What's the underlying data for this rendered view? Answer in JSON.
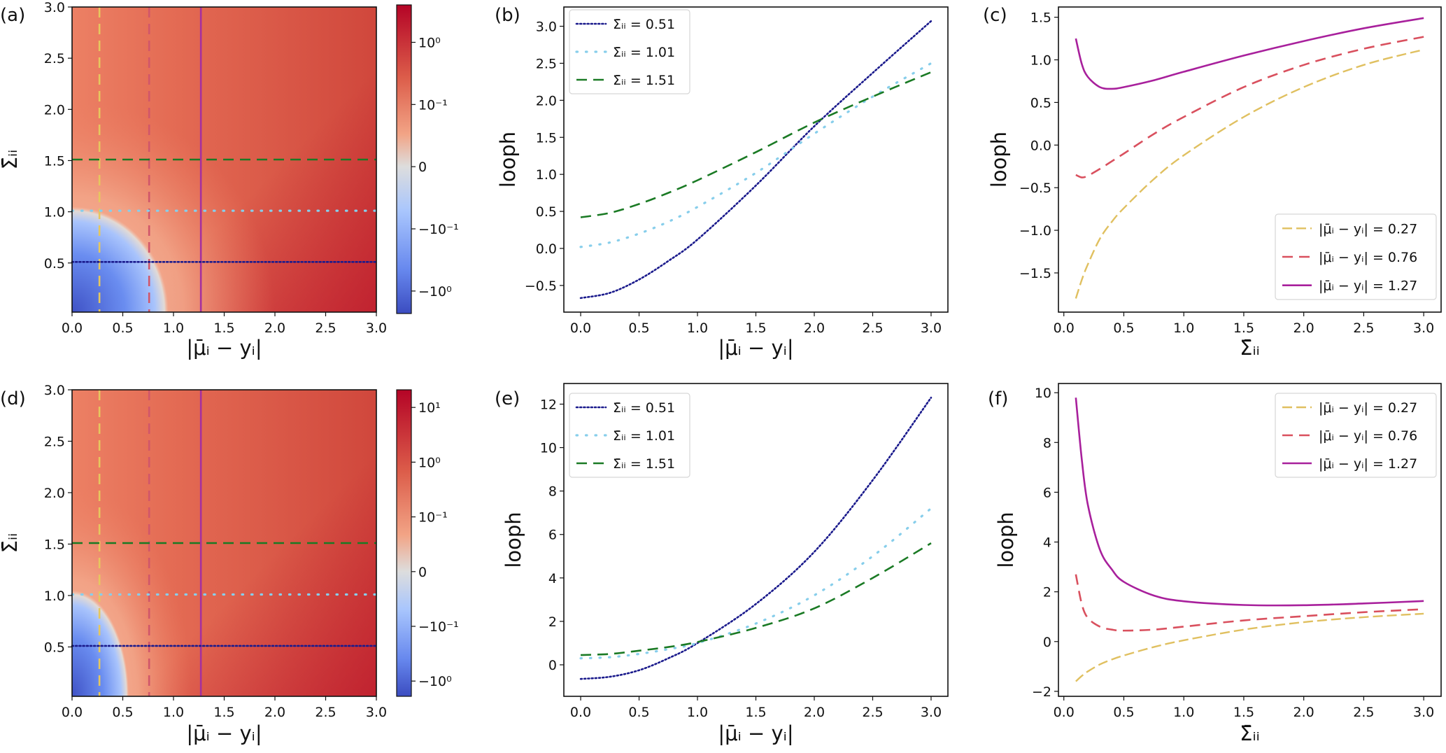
{
  "chart_data": [
    {
      "panel": "(a)",
      "type": "heatmap",
      "xlabel": "|μ̄ᵢ − yᵢ|",
      "ylabel": "Σ̄ᵢᵢ",
      "xlim": [
        0,
        3.0
      ],
      "ylim": [
        0.02,
        3.0
      ],
      "xticks": [
        0,
        0.5,
        1.0,
        1.5,
        2.0,
        2.5,
        3.0
      ],
      "xtick_labels": [
        "0.0",
        "0.5",
        "1.0",
        "1.5",
        "2.0",
        "2.5",
        "3.0"
      ],
      "yticks": [
        0.5,
        1.0,
        1.5,
        2.0,
        2.5,
        3.0
      ],
      "ytick_labels": [
        "0.5",
        "1.0",
        "1.5",
        "2.0",
        "2.5",
        "3.0"
      ],
      "colormap": "coolwarm",
      "negative_region": {
        "x_extent": 0.95,
        "y_extent": 1.05
      },
      "colorbar": {
        "scale": "symlog",
        "linthresh": 0.1,
        "vlim": [
          -2.3,
          4.0
        ],
        "ticks": [
          1,
          0.1,
          0,
          -0.1,
          -1
        ],
        "tick_labels": [
          "10⁰",
          "10⁻¹",
          "0",
          "−10⁻¹",
          "−10⁰"
        ]
      },
      "vlines": [
        {
          "value": 0.27,
          "color": "#e6c75e",
          "style": "dashed"
        },
        {
          "value": 0.76,
          "color": "#d0566a",
          "style": "dashed"
        },
        {
          "value": 1.27,
          "color": "#a5309f",
          "style": "solid"
        }
      ],
      "hlines": [
        {
          "value": 0.51,
          "color": "#1a1a8c",
          "style": "dotted"
        },
        {
          "value": 1.01,
          "color": "#87ceeb",
          "style": "sparse-dotted"
        },
        {
          "value": 1.51,
          "color": "#1a7a24",
          "style": "dashed"
        }
      ]
    },
    {
      "panel": "(b)",
      "type": "line",
      "xlabel": "|μ̄ᵢ − yᵢ|",
      "ylabel": "looph",
      "xlim": [
        -0.144,
        3.144
      ],
      "ylim": [
        -0.86,
        3.26
      ],
      "xticks": [
        0,
        0.5,
        1.0,
        1.5,
        2.0,
        2.5,
        3.0
      ],
      "xtick_labels": [
        "0.0",
        "0.5",
        "1.0",
        "1.5",
        "2.0",
        "2.5",
        "3.0"
      ],
      "yticks": [
        -0.5,
        0,
        0.5,
        1.0,
        1.5,
        2.0,
        2.5,
        3.0
      ],
      "ytick_labels": [
        "−0.5",
        "0.0",
        "0.5",
        "1.0",
        "1.5",
        "2.0",
        "2.5",
        "3.0"
      ],
      "legend_position": "upper left",
      "x": [
        0,
        0.25,
        0.5,
        0.75,
        1.0,
        1.5,
        2.0,
        2.5,
        3.0
      ],
      "series": [
        {
          "name": "Σ̄ᵢᵢ = 0.51",
          "color": "#1a1a8c",
          "style": "dotted",
          "values": [
            -0.67,
            -0.6,
            -0.42,
            -0.17,
            0.12,
            0.85,
            1.65,
            2.37,
            3.07
          ]
        },
        {
          "name": "Σ̄ᵢᵢ = 1.01",
          "color": "#87ceeb",
          "style": "sparse-dotted",
          "values": [
            0.02,
            0.08,
            0.2,
            0.36,
            0.56,
            1.02,
            1.55,
            2.05,
            2.5
          ]
        },
        {
          "name": "Σ̄ᵢᵢ = 1.51",
          "color": "#1a7a24",
          "style": "dashed",
          "values": [
            0.42,
            0.48,
            0.6,
            0.75,
            0.92,
            1.3,
            1.7,
            2.05,
            2.38
          ]
        }
      ]
    },
    {
      "panel": "(c)",
      "type": "line",
      "xlabel": "Σ̄ᵢᵢ",
      "ylabel": "looph",
      "xlim": [
        -0.045,
        3.145
      ],
      "ylim": [
        -1.96,
        1.62
      ],
      "xticks": [
        0,
        0.5,
        1.0,
        1.5,
        2.0,
        2.5,
        3.0
      ],
      "xtick_labels": [
        "0.0",
        "0.5",
        "1.0",
        "1.5",
        "2.0",
        "2.5",
        "3.0"
      ],
      "yticks": [
        -1.5,
        -1.0,
        -0.5,
        0,
        0.5,
        1.0,
        1.5
      ],
      "ytick_labels": [
        "−1.5",
        "−1.0",
        "−0.5",
        "0.0",
        "0.5",
        "1.0",
        "1.5"
      ],
      "legend_position": "lower right",
      "x": [
        0.1,
        0.15,
        0.2,
        0.3,
        0.4,
        0.5,
        0.75,
        1.0,
        1.5,
        2.0,
        2.5,
        3.0
      ],
      "series": [
        {
          "name": "|μ̄ᵢ − yᵢ| = 0.27",
          "color": "#e0c060",
          "style": "dashdot",
          "values": [
            -1.8,
            -1.58,
            -1.4,
            -1.1,
            -0.9,
            -0.74,
            -0.4,
            -0.12,
            0.33,
            0.68,
            0.94,
            1.12
          ]
        },
        {
          "name": "|μ̄ᵢ − yᵢ| = 0.76",
          "color": "#d9505e",
          "style": "dashed",
          "values": [
            -0.35,
            -0.38,
            -0.36,
            -0.28,
            -0.19,
            -0.1,
            0.13,
            0.33,
            0.68,
            0.94,
            1.13,
            1.27
          ]
        },
        {
          "name": "|μ̄ᵢ − yᵢ| = 1.27",
          "color": "#a8209c",
          "style": "solid",
          "values": [
            1.25,
            0.95,
            0.8,
            0.68,
            0.66,
            0.68,
            0.76,
            0.86,
            1.05,
            1.22,
            1.37,
            1.49
          ]
        }
      ]
    },
    {
      "panel": "(d)",
      "type": "heatmap",
      "xlabel": "|μ̄ᵢ − yᵢ|",
      "ylabel": "Σ̄ᵢᵢ",
      "xlim": [
        0,
        3.0
      ],
      "ylim": [
        0.02,
        3.0
      ],
      "xticks": [
        0,
        0.5,
        1.0,
        1.5,
        2.0,
        2.5,
        3.0
      ],
      "xtick_labels": [
        "0.0",
        "0.5",
        "1.0",
        "1.5",
        "2.0",
        "2.5",
        "3.0"
      ],
      "yticks": [
        0.5,
        1.0,
        1.5,
        2.0,
        2.5,
        3.0
      ],
      "ytick_labels": [
        "0.5",
        "1.0",
        "1.5",
        "2.0",
        "2.5",
        "3.0"
      ],
      "colormap": "coolwarm",
      "negative_region": {
        "x_extent": 0.56,
        "y_extent": 1.05
      },
      "colorbar": {
        "scale": "symlog",
        "linthresh": 0.1,
        "vlim": [
          -1.9,
          21.0
        ],
        "ticks": [
          10,
          1,
          0.1,
          0,
          -0.1,
          -1
        ],
        "tick_labels": [
          "10¹",
          "10⁰",
          "10⁻¹",
          "0",
          "−10⁻¹",
          "−10⁰"
        ]
      },
      "vlines": [
        {
          "value": 0.27,
          "color": "#e6c75e",
          "style": "dashed"
        },
        {
          "value": 0.76,
          "color": "#d0566a",
          "style": "dashed"
        },
        {
          "value": 1.27,
          "color": "#a5309f",
          "style": "solid"
        }
      ],
      "hlines": [
        {
          "value": 0.51,
          "color": "#1a1a8c",
          "style": "dotted"
        },
        {
          "value": 1.01,
          "color": "#87ceeb",
          "style": "sparse-dotted"
        },
        {
          "value": 1.51,
          "color": "#1a7a24",
          "style": "dashed"
        }
      ]
    },
    {
      "panel": "(e)",
      "type": "line",
      "xlabel": "|μ̄ᵢ − yᵢ|",
      "ylabel": "looph",
      "xlim": [
        -0.144,
        3.144
      ],
      "ylim": [
        -1.45,
        12.95
      ],
      "xticks": [
        0,
        0.5,
        1.0,
        1.5,
        2.0,
        2.5,
        3.0
      ],
      "xtick_labels": [
        "0.0",
        "0.5",
        "1.0",
        "1.5",
        "2.0",
        "2.5",
        "3.0"
      ],
      "yticks": [
        0,
        2,
        4,
        6,
        8,
        10,
        12
      ],
      "ytick_labels": [
        "0",
        "2",
        "4",
        "6",
        "8",
        "10",
        "12"
      ],
      "legend_position": "upper left",
      "x": [
        0,
        0.25,
        0.5,
        0.75,
        1.0,
        1.5,
        2.0,
        2.5,
        3.0
      ],
      "series": [
        {
          "name": "Σ̄ᵢᵢ = 0.51",
          "color": "#1a1a8c",
          "style": "dotted",
          "values": [
            -0.65,
            -0.55,
            -0.25,
            0.3,
            1.0,
            2.8,
            5.2,
            8.5,
            12.3
          ]
        },
        {
          "name": "Σ̄ᵢᵢ = 1.01",
          "color": "#87ceeb",
          "style": "sparse-dotted",
          "values": [
            0.3,
            0.35,
            0.5,
            0.72,
            1.0,
            1.9,
            3.2,
            5.0,
            7.2
          ]
        },
        {
          "name": "Σ̄ᵢᵢ = 1.51",
          "color": "#1a7a24",
          "style": "dashed",
          "values": [
            0.45,
            0.5,
            0.65,
            0.82,
            1.05,
            1.7,
            2.6,
            4.0,
            5.6
          ]
        }
      ]
    },
    {
      "panel": "(f)",
      "type": "line",
      "xlabel": "Σ̄ᵢᵢ",
      "ylabel": "looph",
      "xlim": [
        -0.045,
        3.145
      ],
      "ylim": [
        -2.2,
        10.37
      ],
      "xticks": [
        0,
        0.5,
        1.0,
        1.5,
        2.0,
        2.5,
        3.0
      ],
      "xtick_labels": [
        "0.0",
        "0.5",
        "1.0",
        "1.5",
        "2.0",
        "2.5",
        "3.0"
      ],
      "yticks": [
        -2,
        0,
        2,
        4,
        6,
        8,
        10
      ],
      "ytick_labels": [
        "−2",
        "0",
        "2",
        "4",
        "6",
        "8",
        "10"
      ],
      "legend_position": "upper right",
      "x": [
        0.1,
        0.15,
        0.2,
        0.3,
        0.4,
        0.5,
        0.75,
        1.0,
        1.5,
        2.0,
        2.5,
        3.0
      ],
      "series": [
        {
          "name": "|μ̄ᵢ − yᵢ| = 0.27",
          "color": "#e0c060",
          "style": "dashdot",
          "values": [
            -1.6,
            -1.38,
            -1.2,
            -0.92,
            -0.72,
            -0.56,
            -0.22,
            0.05,
            0.48,
            0.78,
            0.98,
            1.12
          ]
        },
        {
          "name": "|μ̄ᵢ − yᵢ| = 0.76",
          "color": "#d9505e",
          "style": "dashed",
          "values": [
            2.7,
            1.5,
            0.95,
            0.6,
            0.48,
            0.44,
            0.48,
            0.6,
            0.85,
            1.02,
            1.18,
            1.3
          ]
        },
        {
          "name": "|μ̄ᵢ − yᵢ| = 1.27",
          "color": "#a8209c",
          "style": "solid",
          "values": [
            9.8,
            7.3,
            5.5,
            3.7,
            2.9,
            2.4,
            1.85,
            1.62,
            1.47,
            1.46,
            1.53,
            1.63
          ]
        }
      ]
    }
  ]
}
